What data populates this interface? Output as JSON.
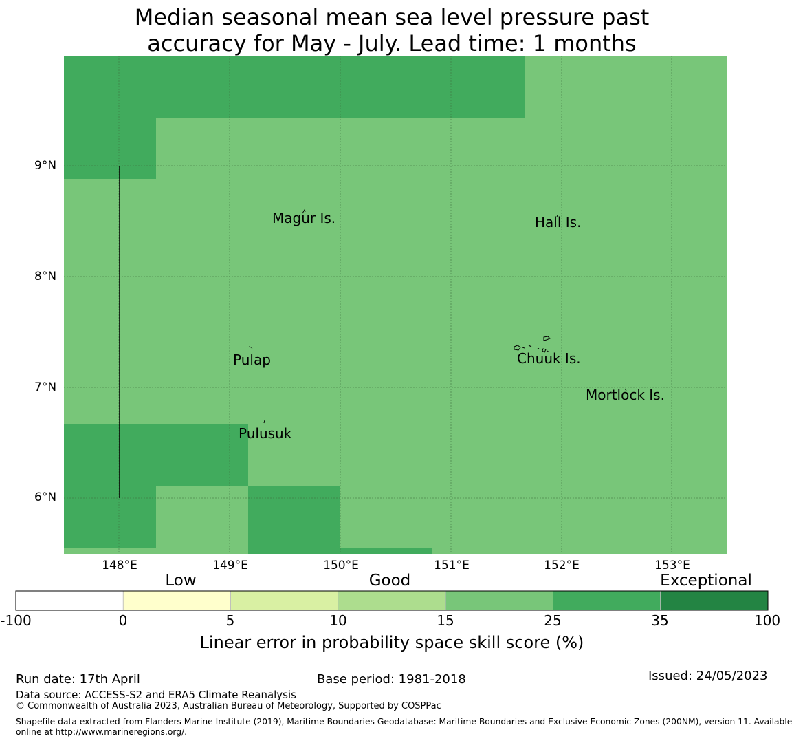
{
  "title": {
    "line1": "Median seasonal mean sea level pressure past",
    "line2": "accuracy for May - July. Lead time: 1 months"
  },
  "map": {
    "lat_ticks": [
      {
        "value": 9,
        "label": "9°N"
      },
      {
        "value": 8,
        "label": "8°N"
      },
      {
        "value": 7,
        "label": "7°N"
      },
      {
        "value": 6,
        "label": "6°N"
      }
    ],
    "lon_ticks": [
      {
        "value": 148,
        "label": "148°E"
      },
      {
        "value": 149,
        "label": "149°E"
      },
      {
        "value": 150,
        "label": "150°E"
      },
      {
        "value": 151,
        "label": "151°E"
      },
      {
        "value": 152,
        "label": "152°E"
      },
      {
        "value": 153,
        "label": "153°E"
      }
    ],
    "lon_range": [
      147.5,
      153.5
    ],
    "lat_range": [
      5.5,
      10.0
    ],
    "places": [
      {
        "name": "Magur Is.",
        "lon": 149.68,
        "lat": 8.55
      },
      {
        "name": "Hall Is.",
        "lon": 151.8,
        "lat": 8.5
      },
      {
        "name": "Pulap",
        "lon": 149.2,
        "lat": 7.28
      },
      {
        "name": "Chuuk Is.",
        "lon": 151.75,
        "lat": 7.3
      },
      {
        "name": "Mortlock Is.",
        "lon": 152.6,
        "lat": 6.95
      },
      {
        "name": "Pulusuk",
        "lon": 149.33,
        "lat": 6.62
      }
    ],
    "colors": {
      "good_15_25": "#78c679",
      "good_25_35": "#41ab5d"
    }
  },
  "colorbar": {
    "bins": [
      {
        "from": -100,
        "to": 0,
        "color": "#ffffff"
      },
      {
        "from": 0,
        "to": 5,
        "color": "#ffffcc"
      },
      {
        "from": 5,
        "to": 10,
        "color": "#d9f0a3"
      },
      {
        "from": 10,
        "to": 15,
        "color": "#addd8e"
      },
      {
        "from": 15,
        "to": 25,
        "color": "#78c679"
      },
      {
        "from": 25,
        "to": 35,
        "color": "#41ab5d"
      },
      {
        "from": 35,
        "to": 100,
        "color": "#238443"
      }
    ],
    "ticks": [
      "-100",
      "0",
      "5",
      "10",
      "15",
      "25",
      "35",
      "100"
    ],
    "categories": {
      "low": "Low",
      "good": "Good",
      "exceptional": "Exceptional"
    },
    "label": "Linear error in probability space skill score (%)"
  },
  "footer": {
    "run_date": "Run date: 17th April",
    "base_period": "Base period: 1981-2018",
    "issued": "Issued: 24/05/2023",
    "data_source": "Data source: ACCESS-S2 and ERA5 Climate Reanalysis",
    "copyright": "© Commonwealth of Australia 2023, Australian Bureau of Meteorology, Supported by COSPPac",
    "shapefile_1": "Shapefile data extracted from Flanders Marine Institute (2019), Maritime Boundaries Geodatabase: Maritime Boundaries and Exclusive Economic Zones (200NM), version 11. Available",
    "shapefile_2": "online at http://www.marineregions.org/."
  }
}
